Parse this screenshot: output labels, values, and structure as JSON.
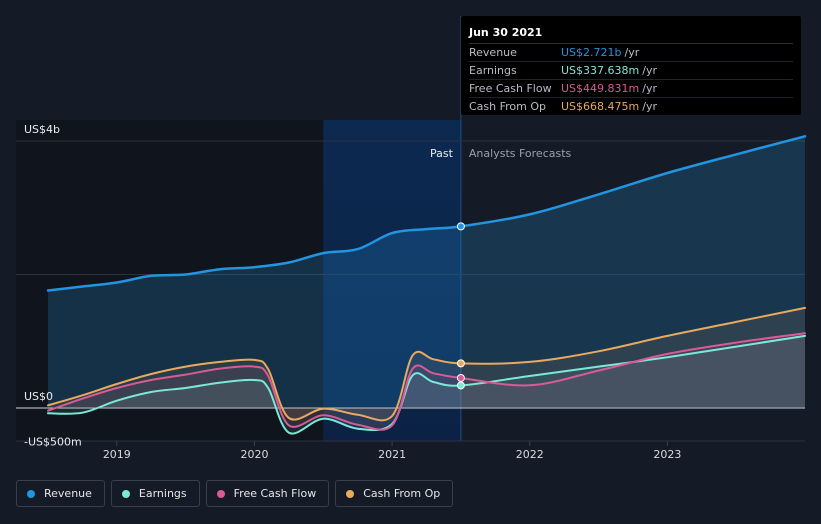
{
  "tooltip": {
    "date": "Jun 30 2021",
    "rows": [
      {
        "name": "Revenue",
        "value": "US$2.721b",
        "unit": "/yr",
        "color": "#2394df"
      },
      {
        "name": "Earnings",
        "value": "US$337.638m",
        "unit": "/yr",
        "color": "#7de8d6"
      },
      {
        "name": "Free Cash Flow",
        "value": "US$449.831m",
        "unit": "/yr",
        "color": "#d95b95"
      },
      {
        "name": "Cash From Op",
        "value": "US$668.475m",
        "unit": "/yr",
        "color": "#e8aa5f"
      }
    ]
  },
  "legend": [
    {
      "label": "Revenue",
      "color": "#2394df"
    },
    {
      "label": "Earnings",
      "color": "#7de8d6"
    },
    {
      "label": "Free Cash Flow",
      "color": "#d95b95"
    },
    {
      "label": "Cash From Op",
      "color": "#e8aa5f"
    }
  ],
  "chart_data": {
    "type": "area",
    "y_labels": {
      "top": "US$4b",
      "zero": "US$0",
      "bottom": "-US$500m"
    },
    "ylim": [
      -500,
      4000
    ],
    "xlim": [
      2018.5,
      2024
    ],
    "x_ticks": [
      2019,
      2020,
      2021,
      2022,
      2023
    ],
    "x_tick_labels": [
      "2019",
      "2020",
      "2021",
      "2022",
      "2023"
    ],
    "regions": {
      "past_label": "Past",
      "forecast_label": "Analysts Forecasts",
      "split_x": 2021.5,
      "highlight_start_x": 2020.5
    },
    "grid": true,
    "series": [
      {
        "name": "Revenue",
        "color": "#2394df",
        "points": [
          [
            2018.5,
            1760
          ],
          [
            2018.75,
            1820
          ],
          [
            2019.0,
            1880
          ],
          [
            2019.25,
            1980
          ],
          [
            2019.5,
            2000
          ],
          [
            2019.75,
            2080
          ],
          [
            2020.0,
            2110
          ],
          [
            2020.25,
            2180
          ],
          [
            2020.5,
            2320
          ],
          [
            2020.75,
            2380
          ],
          [
            2021.0,
            2620
          ],
          [
            2021.25,
            2680
          ],
          [
            2021.5,
            2721
          ],
          [
            2022.0,
            2900
          ],
          [
            2022.5,
            3200
          ],
          [
            2023.0,
            3520
          ],
          [
            2023.5,
            3800
          ],
          [
            2024.0,
            4070
          ]
        ]
      },
      {
        "name": "Earnings",
        "color": "#7de8d6",
        "points": [
          [
            2018.5,
            -80
          ],
          [
            2018.75,
            -70
          ],
          [
            2019.0,
            110
          ],
          [
            2019.25,
            240
          ],
          [
            2019.5,
            300
          ],
          [
            2019.75,
            380
          ],
          [
            2020.0,
            420
          ],
          [
            2020.1,
            300
          ],
          [
            2020.25,
            -370
          ],
          [
            2020.5,
            -160
          ],
          [
            2020.75,
            -310
          ],
          [
            2021.0,
            -240
          ],
          [
            2021.15,
            490
          ],
          [
            2021.3,
            390
          ],
          [
            2021.5,
            337.638
          ],
          [
            2022.0,
            480
          ],
          [
            2022.5,
            620
          ],
          [
            2023.0,
            760
          ],
          [
            2023.5,
            920
          ],
          [
            2024.0,
            1080
          ]
        ]
      },
      {
        "name": "Free Cash Flow",
        "color": "#d95b95",
        "points": [
          [
            2018.5,
            -40
          ],
          [
            2018.75,
            140
          ],
          [
            2019.0,
            300
          ],
          [
            2019.25,
            420
          ],
          [
            2019.5,
            500
          ],
          [
            2019.75,
            590
          ],
          [
            2020.0,
            620
          ],
          [
            2020.1,
            480
          ],
          [
            2020.25,
            -260
          ],
          [
            2020.5,
            -110
          ],
          [
            2020.75,
            -250
          ],
          [
            2021.0,
            -260
          ],
          [
            2021.15,
            590
          ],
          [
            2021.3,
            520
          ],
          [
            2021.5,
            449.831
          ],
          [
            2022.0,
            340
          ],
          [
            2022.5,
            560
          ],
          [
            2023.0,
            810
          ],
          [
            2023.5,
            980
          ],
          [
            2024.0,
            1120
          ]
        ]
      },
      {
        "name": "Cash From Op",
        "color": "#e8aa5f",
        "points": [
          [
            2018.5,
            40
          ],
          [
            2018.75,
            190
          ],
          [
            2019.0,
            360
          ],
          [
            2019.25,
            510
          ],
          [
            2019.5,
            620
          ],
          [
            2019.75,
            690
          ],
          [
            2020.0,
            720
          ],
          [
            2020.1,
            580
          ],
          [
            2020.25,
            -150
          ],
          [
            2020.5,
            -10
          ],
          [
            2020.75,
            -100
          ],
          [
            2021.0,
            -120
          ],
          [
            2021.15,
            790
          ],
          [
            2021.3,
            730
          ],
          [
            2021.5,
            668.475
          ],
          [
            2022.0,
            690
          ],
          [
            2022.5,
            850
          ],
          [
            2023.0,
            1080
          ],
          [
            2023.5,
            1290
          ],
          [
            2024.0,
            1500
          ]
        ]
      }
    ]
  }
}
